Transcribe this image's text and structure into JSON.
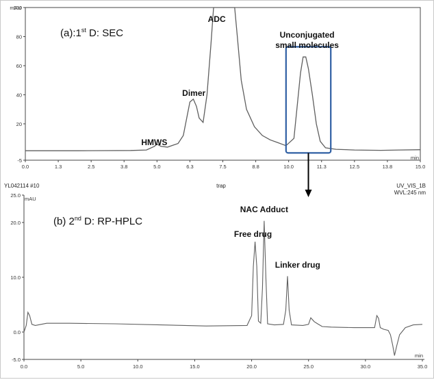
{
  "colors": {
    "trace": "#5e5e5e",
    "highlight_box": "#2f5fa3",
    "arrow": "#000000",
    "axis": "#444444"
  },
  "chart_data": [
    {
      "type": "line",
      "panel_label": "(a):1",
      "panel_label_sup": "st",
      "panel_label_rest": " D: SEC",
      "y_unit": "mAU",
      "x_unit": "min",
      "xlim": [
        0,
        15.0
      ],
      "ylim": [
        -5,
        100
      ],
      "x_ticks": [
        0,
        1.25,
        2.5,
        3.75,
        5,
        6.25,
        7.5,
        8.75,
        10,
        11.25,
        12.5,
        13.75,
        15
      ],
      "x_tick_labels": [
        "0.0",
        "1.3",
        "2.5",
        "3.8",
        "5.0",
        "6.3",
        "7.5",
        "8.8",
        "10.0",
        "11.3",
        "12.5",
        "13.8",
        "15.0"
      ],
      "y_ticks": [
        -5,
        20,
        40,
        60,
        80,
        100
      ],
      "y_tick_labels": [
        "-5",
        "20",
        "40",
        "60",
        "80",
        "100"
      ],
      "annotations": [
        {
          "text": "HMWS",
          "x": 5.0
        },
        {
          "text": "Dimer",
          "x": 6.4
        },
        {
          "text": "ADC",
          "x": 7.4
        },
        {
          "text": "Unconjugated",
          "x": 10.7
        },
        {
          "text": "small molecules",
          "x": 10.7
        }
      ],
      "highlight_region": {
        "x": [
          9.9,
          11.6
        ],
        "y": [
          0,
          73
        ]
      },
      "series": [
        {
          "x": [
            0,
            1,
            2,
            3,
            4,
            4.6,
            4.9,
            5.0,
            5.15,
            5.4,
            5.8,
            6.0,
            6.15,
            6.25,
            6.38,
            6.5,
            6.6,
            6.75,
            6.9,
            7.05,
            7.15,
            7.25,
            7.6,
            7.95,
            8.05,
            8.2,
            8.4,
            8.7,
            9.0,
            9.3,
            9.6,
            9.9,
            10.2,
            10.45,
            10.55,
            10.65,
            10.75,
            10.9,
            11.05,
            11.2,
            11.4,
            11.8,
            12.5,
            13.5,
            14.2,
            15.0
          ],
          "y": [
            1.5,
            1.5,
            1.5,
            1.6,
            1.7,
            2.0,
            4.5,
            6.0,
            4.5,
            4.0,
            6.5,
            12,
            26,
            35,
            37,
            32,
            24,
            21,
            40,
            75,
            100,
            100,
            100,
            100,
            80,
            50,
            30,
            18,
            12,
            9,
            7,
            5,
            10,
            55,
            66,
            66,
            58,
            40,
            20,
            8,
            3.5,
            2.5,
            2.0,
            1.8,
            2.0,
            2.2
          ]
        }
      ]
    },
    {
      "type": "line",
      "header_left": "YL042114 #10",
      "header_center": "trap",
      "header_right_1": "UV_VIS_1B",
      "header_right_2": "WVL:245 nm",
      "panel_label": "(b) 2",
      "panel_label_sup": "nd",
      "panel_label_rest": " D: RP-HPLC",
      "y_unit": "mAU",
      "x_unit": "min",
      "xlim": [
        0,
        35.0
      ],
      "ylim": [
        -5,
        25
      ],
      "x_ticks": [
        0,
        5,
        10,
        15,
        20,
        25,
        30,
        35
      ],
      "x_tick_labels": [
        "0.0",
        "5.0",
        "10.0",
        "15.0",
        "20.0",
        "25.0",
        "30.0",
        "35.0"
      ],
      "y_ticks": [
        -5,
        0,
        10,
        20,
        25
      ],
      "y_tick_labels": [
        "-5.0",
        "0.0",
        "10.0",
        "20.0",
        "25.0"
      ],
      "annotations": [
        {
          "text": "NAC Adduct",
          "x": 21.1
        },
        {
          "text": "Free drug",
          "x": 20.3
        },
        {
          "text": "Linker drug",
          "x": 23.2
        }
      ],
      "series": [
        {
          "x": [
            0,
            0.2,
            0.35,
            0.5,
            0.7,
            1.0,
            1.5,
            2.0,
            4,
            8,
            12,
            16,
            19.6,
            20.0,
            20.15,
            20.3,
            20.45,
            20.6,
            20.8,
            20.95,
            21.1,
            21.25,
            21.4,
            22.0,
            22.8,
            23.0,
            23.15,
            23.3,
            23.5,
            24.5,
            25.0,
            25.2,
            25.5,
            25.8,
            26.2,
            27,
            29,
            30.8,
            31.0,
            31.15,
            31.3,
            31.6,
            32.0,
            32.2,
            32.4,
            32.55,
            32.75,
            33.0,
            33.5,
            34.2,
            35.0
          ],
          "y": [
            0.0,
            1.2,
            3.6,
            3.0,
            1.4,
            1.2,
            1.4,
            1.6,
            1.6,
            1.5,
            1.3,
            1.1,
            1.2,
            3.0,
            12.0,
            16.5,
            12.0,
            2.0,
            1.6,
            8.0,
            20.3,
            10.0,
            1.5,
            1.3,
            1.4,
            4.0,
            10.2,
            4.0,
            1.3,
            1.2,
            1.4,
            2.6,
            1.9,
            1.5,
            1.0,
            0.9,
            0.8,
            0.8,
            3.0,
            2.5,
            0.8,
            0.5,
            0.3,
            -0.5,
            -2.5,
            -4.3,
            -2.5,
            -0.5,
            0.8,
            1.3,
            1.4
          ]
        }
      ]
    }
  ]
}
